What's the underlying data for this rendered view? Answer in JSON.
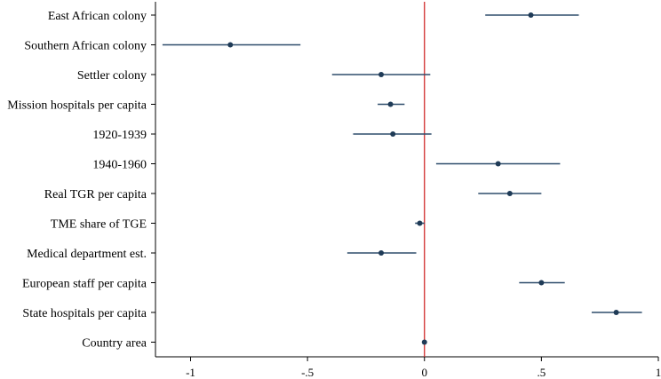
{
  "colors": {
    "background": "#ffffff",
    "ci_line": "#2e4d6b",
    "point": "#1f3b57",
    "zero_line": "#d12b2b",
    "axis": "#000000"
  },
  "chart_data": {
    "type": "coefficient-plot",
    "title": "",
    "xlabel": "",
    "ylabel": "",
    "xlim": [
      -1.15,
      1.0
    ],
    "grid": false,
    "reference_line": 0,
    "x_ticks": [
      -1,
      -0.5,
      0,
      0.5,
      1
    ],
    "x_tick_labels": [
      "-1",
      "-.5",
      "0",
      ".5",
      "1"
    ],
    "series": [
      {
        "label": "East African colony",
        "estimate": 0.455,
        "ci_low": 0.26,
        "ci_high": 0.66
      },
      {
        "label": "Southern African colony",
        "estimate": -0.83,
        "ci_low": -1.12,
        "ci_high": -0.53
      },
      {
        "label": "Settler colony",
        "estimate": -0.185,
        "ci_low": -0.395,
        "ci_high": 0.025
      },
      {
        "label": "Mission hospitals per capita",
        "estimate": -0.145,
        "ci_low": -0.2,
        "ci_high": -0.085
      },
      {
        "label": "1920-1939",
        "estimate": -0.135,
        "ci_low": -0.305,
        "ci_high": 0.03
      },
      {
        "label": "1940-1960",
        "estimate": 0.315,
        "ci_low": 0.05,
        "ci_high": 0.58
      },
      {
        "label": "Real TGR per capita",
        "estimate": 0.365,
        "ci_low": 0.23,
        "ci_high": 0.5
      },
      {
        "label": "TME share of TGE",
        "estimate": -0.02,
        "ci_low": -0.04,
        "ci_high": 0.0
      },
      {
        "label": "Medical department est.",
        "estimate": -0.185,
        "ci_low": -0.33,
        "ci_high": -0.035
      },
      {
        "label": "European staff per capita",
        "estimate": 0.5,
        "ci_low": 0.405,
        "ci_high": 0.6
      },
      {
        "label": "State hospitals per capita",
        "estimate": 0.82,
        "ci_low": 0.715,
        "ci_high": 0.93
      },
      {
        "label": "Country area",
        "estimate": 0.0,
        "ci_low": -0.005,
        "ci_high": 0.005
      }
    ]
  }
}
